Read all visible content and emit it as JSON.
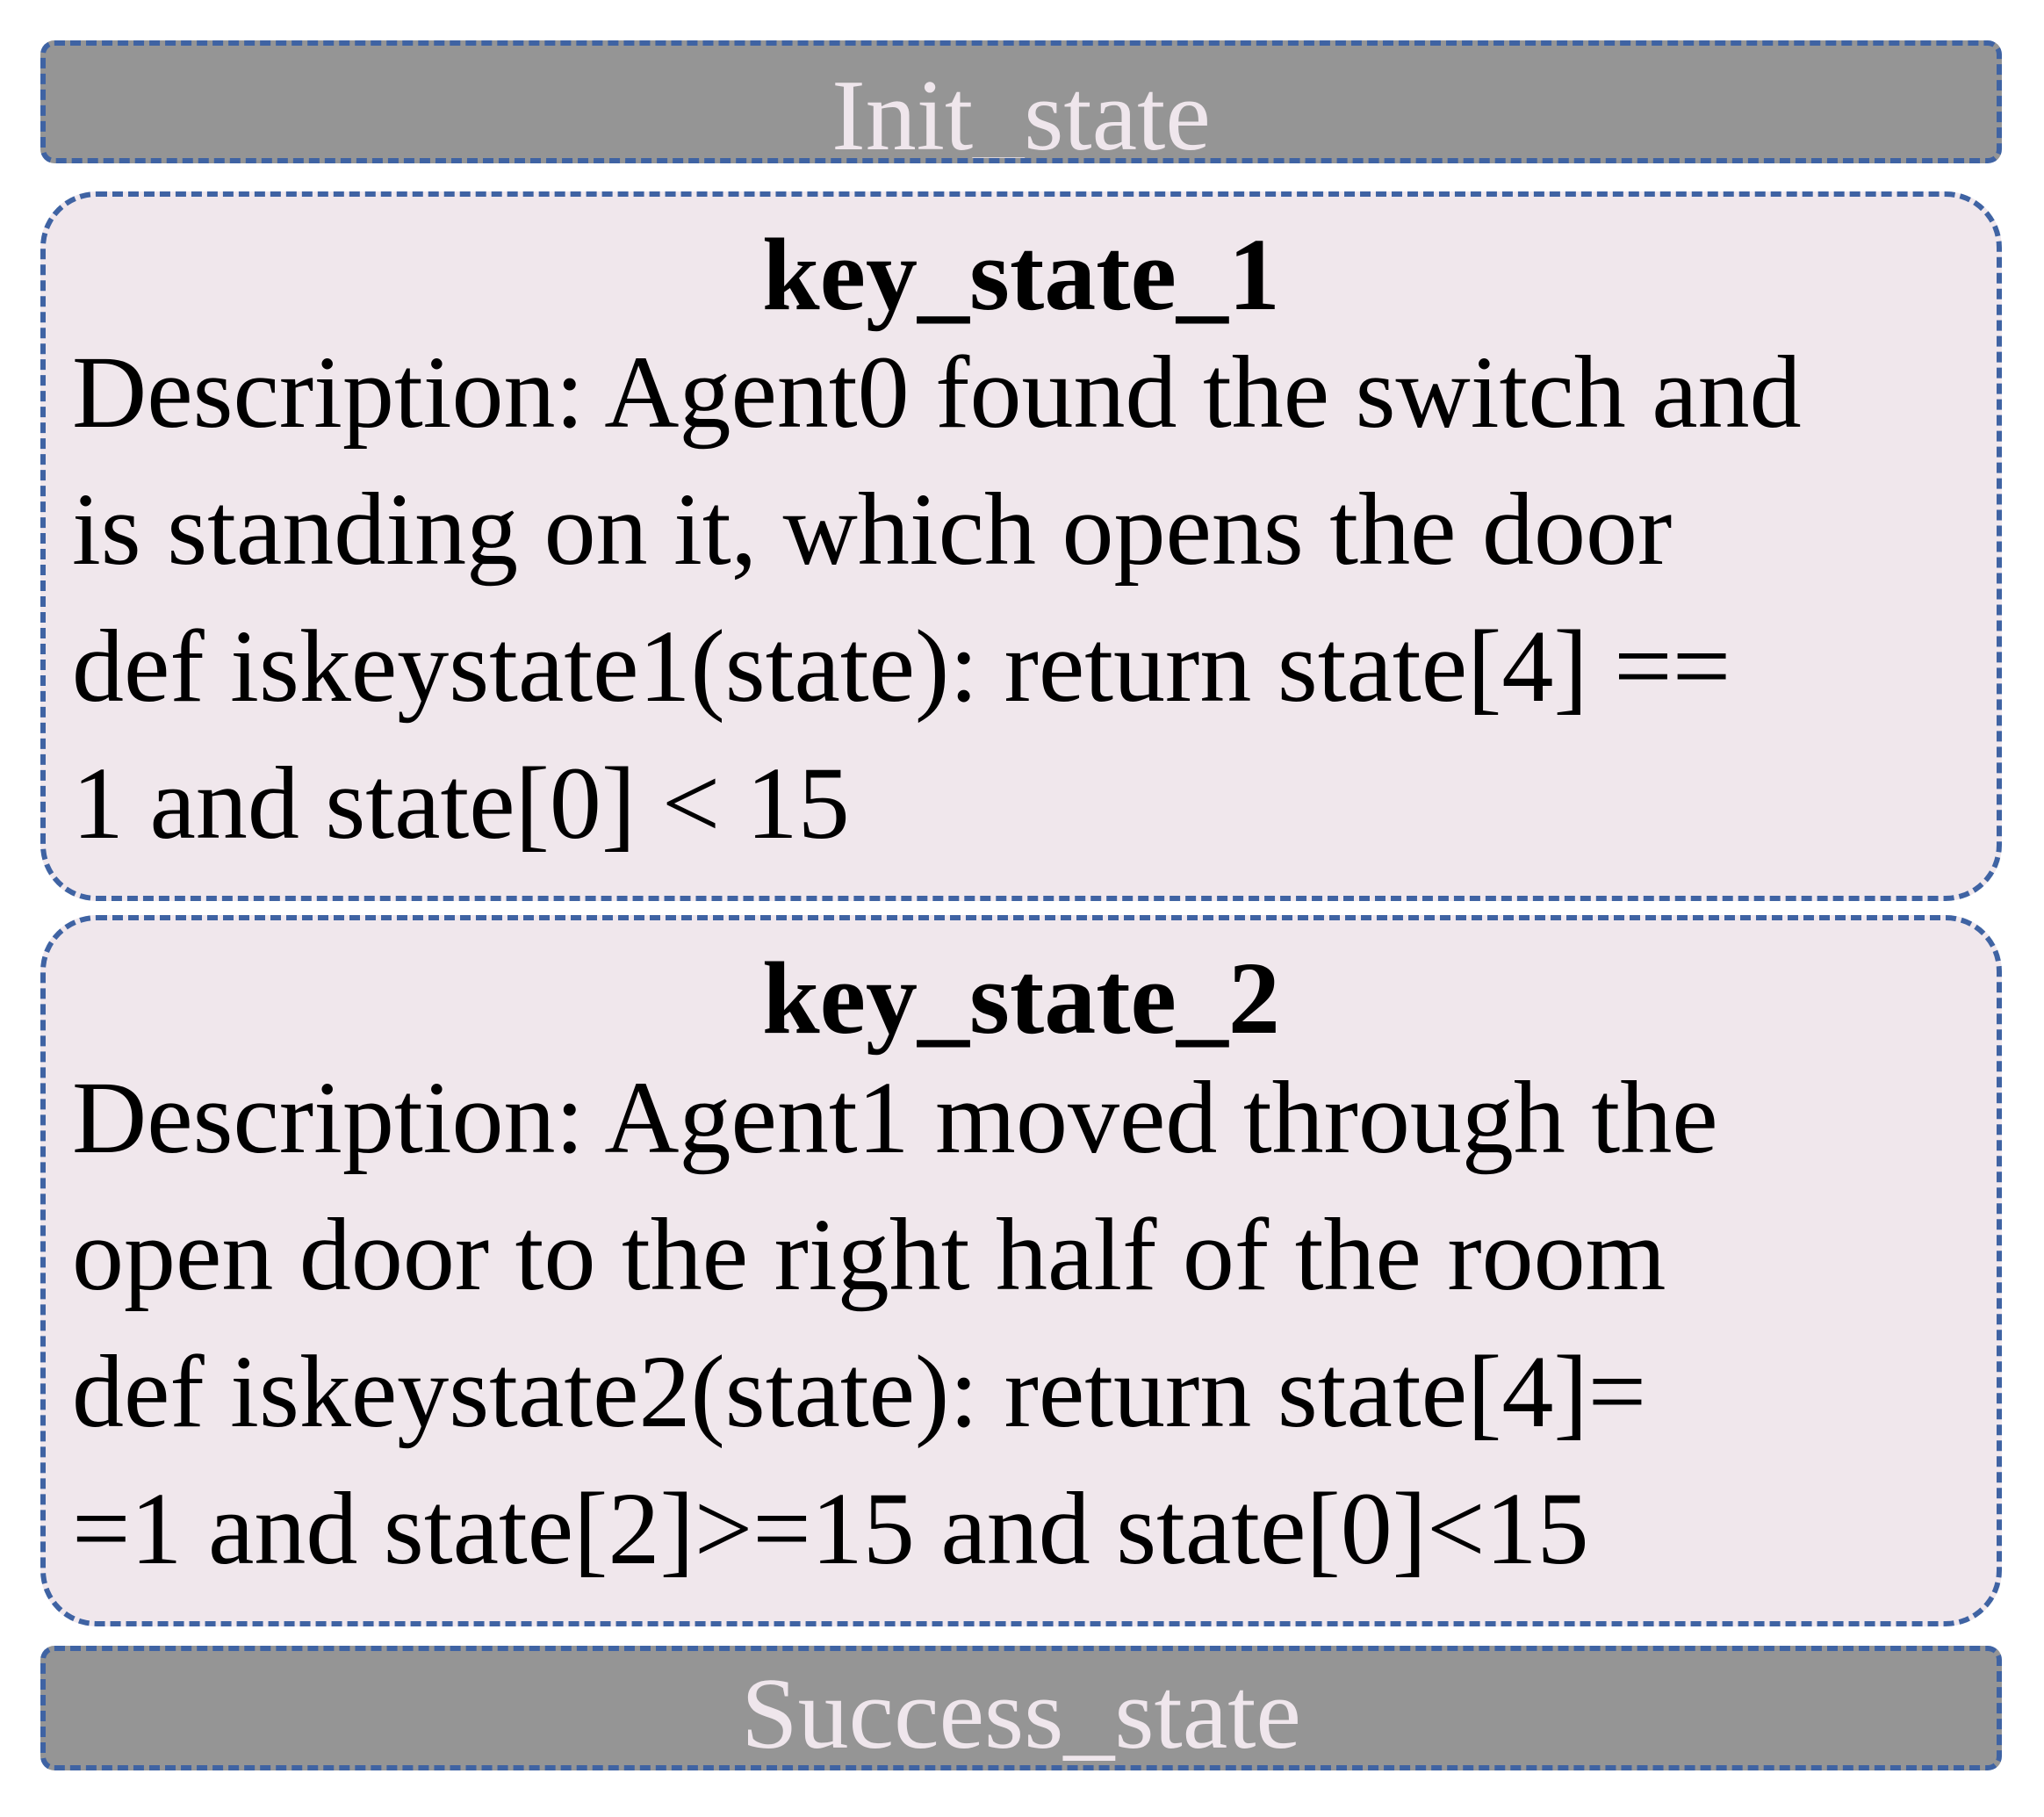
{
  "init_state": {
    "label": "Init_state"
  },
  "key_states": [
    {
      "title": "key_state_1",
      "lines": [
        "Description: Agent0 found the switch and",
        "is standing on it, which opens the door",
        "def iskeystate1(state): return state[4] ==",
        "1 and state[0] < 15"
      ]
    },
    {
      "title": "key_state_2",
      "lines": [
        "Description: Agent1 moved through the",
        "open door to the right half of the room",
        "def iskeystate2(state): return state[4]=",
        "=1 and state[2]>=15 and state[0]<15"
      ]
    }
  ],
  "success_state": {
    "label": "Success_state"
  },
  "colors": {
    "border": "#3f63a3",
    "bar_fill": "#959595",
    "bar_text": "#efe6ec",
    "card_fill": "#f0e7ec"
  }
}
